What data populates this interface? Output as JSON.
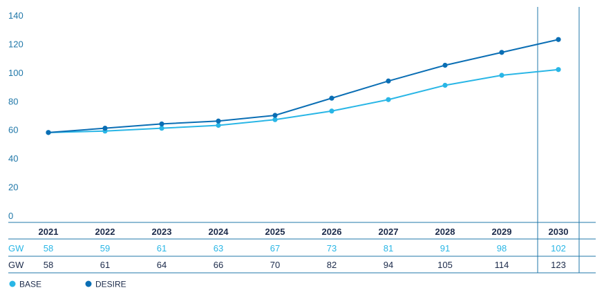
{
  "chart_data": {
    "type": "line",
    "categories": [
      "2021",
      "2022",
      "2023",
      "2024",
      "2025",
      "2026",
      "2027",
      "2028",
      "2029",
      "2030"
    ],
    "ylim": [
      0,
      140
    ],
    "yticks": [
      0,
      20,
      40,
      60,
      80,
      100,
      120,
      140
    ],
    "grid": false,
    "highlight_category": "2030",
    "unit_label": "GW",
    "series": [
      {
        "name": "BASE",
        "color": "#29b6e6",
        "values": [
          58,
          59,
          61,
          63,
          67,
          73,
          81,
          91,
          98,
          102
        ]
      },
      {
        "name": "DESIRE",
        "color": "#0a6eb4",
        "values": [
          58,
          61,
          64,
          66,
          70,
          82,
          94,
          105,
          114,
          123
        ]
      }
    ],
    "table_rows": [
      {
        "label": "GW",
        "series": "BASE",
        "values": [
          "58",
          "59",
          "61",
          "63",
          "67",
          "73",
          "81",
          "91",
          "98",
          "102"
        ]
      },
      {
        "label": "GW",
        "series": "DESIRE",
        "values": [
          "58",
          "61",
          "64",
          "66",
          "70",
          "82",
          "94",
          "105",
          "114",
          "123"
        ]
      }
    ],
    "legend": {
      "placement": "bottom-left",
      "entries": [
        "BASE",
        "DESIRE"
      ]
    }
  },
  "colors": {
    "axis_text": "#1f77a8",
    "year_text": "#1b2a4a",
    "rule": "#1f77a8",
    "base_row_text": "#29b6e6",
    "desire_row_text": "#1b2a4a"
  }
}
